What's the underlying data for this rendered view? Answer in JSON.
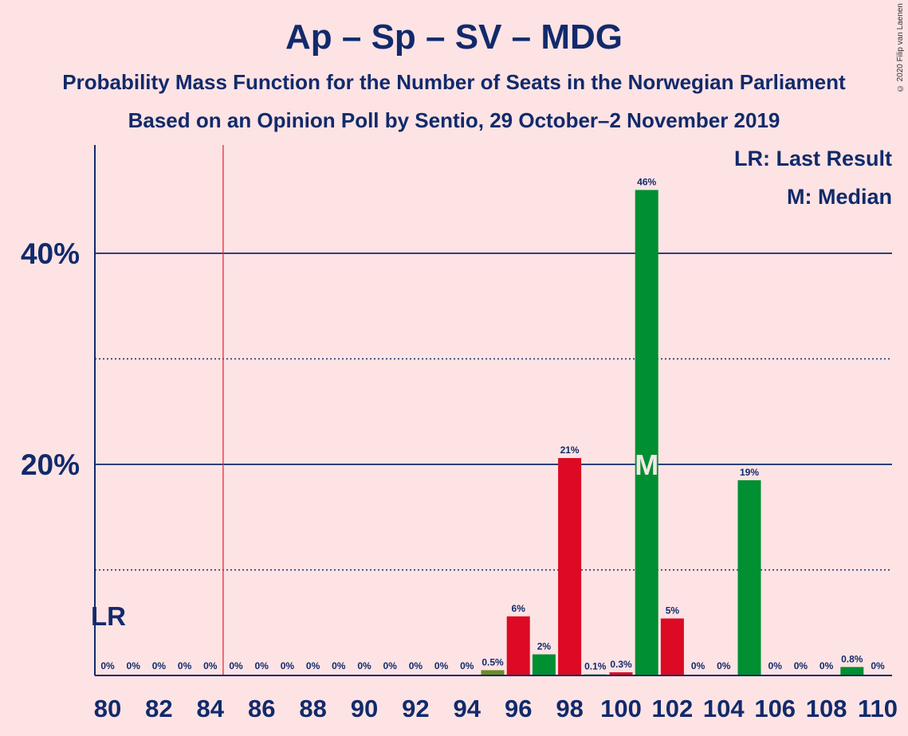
{
  "header": {
    "title": "Ap – Sp – SV – MDG",
    "subtitle1": "Probability Mass Function for the Number of Seats in the Norwegian Parliament",
    "subtitle2": "Based on an Opinion Poll by Sentio, 29 October–2 November 2019",
    "copyright": "© 2020 Filip van Laenen"
  },
  "legend": {
    "last_result": "LR: Last Result",
    "median": "M: Median"
  },
  "colors": {
    "background": "#fde3e4",
    "text": "#112a6b",
    "green": "#008f31",
    "red": "#dc0a22",
    "olive": "#6b8c2a",
    "lr_line": "#e0303a"
  },
  "chart_data": {
    "type": "bar",
    "x": [
      80,
      81,
      82,
      83,
      84,
      85,
      86,
      87,
      88,
      89,
      90,
      91,
      92,
      93,
      94,
      95,
      96,
      97,
      98,
      99,
      100,
      101,
      102,
      103,
      104,
      105,
      106,
      107,
      108,
      109,
      110
    ],
    "values": [
      0,
      0,
      0,
      0,
      0,
      0,
      0,
      0,
      0,
      0,
      0,
      0,
      0,
      0,
      0,
      0.5,
      5.6,
      2,
      20.6,
      0.1,
      0.3,
      46,
      5.4,
      0,
      0,
      18.5,
      0,
      0,
      0,
      0.8,
      0
    ],
    "labels": [
      "0%",
      "0%",
      "0%",
      "0%",
      "0%",
      "0%",
      "0%",
      "0%",
      "0%",
      "0%",
      "0%",
      "0%",
      "0%",
      "0%",
      "0%",
      "0.5%",
      "6%",
      "2%",
      "21%",
      "0.1%",
      "0.3%",
      "46%",
      "5%",
      "0%",
      "0%",
      "19%",
      "0%",
      "0%",
      "0%",
      "0.8%",
      "0%"
    ],
    "bar_colors": [
      "green",
      "green",
      "green",
      "green",
      "green",
      "green",
      "green",
      "green",
      "green",
      "green",
      "green",
      "green",
      "green",
      "green",
      "green",
      "olive",
      "red",
      "green",
      "red",
      "green",
      "red",
      "green",
      "red",
      "green",
      "green",
      "green",
      "green",
      "green",
      "green",
      "green",
      "green"
    ],
    "xticks": [
      "80",
      "82",
      "84",
      "86",
      "88",
      "90",
      "92",
      "94",
      "96",
      "98",
      "100",
      "102",
      "104",
      "106",
      "108",
      "110"
    ],
    "yticks": [
      {
        "value": 20,
        "label": "20%"
      },
      {
        "value": 40,
        "label": "40%"
      }
    ],
    "minor_grid": [
      10,
      30
    ],
    "ylim": [
      0,
      50
    ],
    "last_result": {
      "seat": 85,
      "label": "LR"
    },
    "median": {
      "seat": 101,
      "label": "M"
    }
  }
}
